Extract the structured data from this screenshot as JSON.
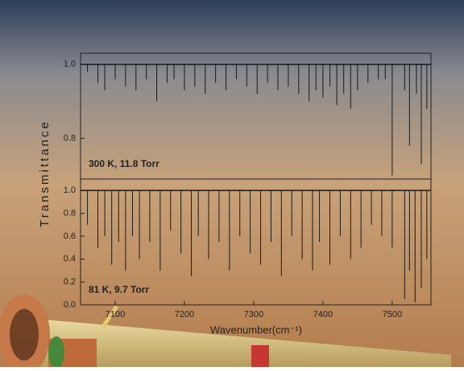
{
  "chart_data": [
    {
      "type": "stick",
      "annotation": "300 K, 11.8 Torr",
      "y_label": "Transmittance",
      "x": [
        7060,
        7075,
        7085,
        7100,
        7115,
        7130,
        7145,
        7160,
        7175,
        7185,
        7200,
        7215,
        7230,
        7245,
        7260,
        7275,
        7290,
        7305,
        7320,
        7335,
        7350,
        7365,
        7380,
        7390,
        7400,
        7410,
        7420,
        7430,
        7440,
        7450,
        7465,
        7480,
        7490,
        7500,
        7518,
        7525,
        7535,
        7542,
        7550
      ],
      "values": [
        0.98,
        0.95,
        0.93,
        0.96,
        0.94,
        0.93,
        0.96,
        0.9,
        0.95,
        0.96,
        0.93,
        0.94,
        0.92,
        0.95,
        0.93,
        0.96,
        0.94,
        0.92,
        0.95,
        0.93,
        0.94,
        0.92,
        0.9,
        0.93,
        0.91,
        0.94,
        0.89,
        0.92,
        0.88,
        0.93,
        0.95,
        0.96,
        0.96,
        0.7,
        0.93,
        0.78,
        0.92,
        0.73,
        0.88
      ],
      "color": "#1a1a1a",
      "xlim": [
        7050,
        7556
      ],
      "ylim": [
        0.69,
        1.03
      ],
      "yticks": [
        {
          "value": 1,
          "label": "1.0"
        },
        {
          "value": 0.8,
          "label": "0.8"
        }
      ]
    },
    {
      "type": "stick",
      "annotation": "81 K, 9.7 Torr",
      "x_label": "Wavenumber(cm⁻¹)",
      "x": [
        7060,
        7075,
        7085,
        7095,
        7105,
        7115,
        7125,
        7135,
        7150,
        7165,
        7180,
        7195,
        7210,
        7220,
        7235,
        7250,
        7265,
        7280,
        7295,
        7310,
        7325,
        7340,
        7355,
        7370,
        7385,
        7395,
        7410,
        7425,
        7440,
        7455,
        7470,
        7485,
        7500,
        7518,
        7525,
        7533,
        7542,
        7550
      ],
      "values": [
        0.7,
        0.5,
        0.6,
        0.35,
        0.55,
        0.3,
        0.6,
        0.4,
        0.55,
        0.3,
        0.65,
        0.45,
        0.25,
        0.6,
        0.4,
        0.55,
        0.3,
        0.6,
        0.45,
        0.35,
        0.55,
        0.25,
        0.6,
        0.4,
        0.3,
        0.55,
        0.35,
        0.6,
        0.4,
        0.5,
        0.7,
        0.6,
        0.5,
        0.05,
        0.3,
        0.02,
        0.15,
        0.4
      ],
      "color": "#1a1a1a",
      "xlim": [
        7050,
        7556
      ],
      "ylim": [
        0,
        1.1
      ],
      "xticks": [
        7100,
        7200,
        7300,
        7400,
        7500
      ],
      "yticks": [
        {
          "value": 1,
          "label": "1.0"
        },
        {
          "value": 0.8,
          "label": "0.8"
        },
        {
          "value": 0.6,
          "label": "0.6"
        },
        {
          "value": 0.4,
          "label": "0.4"
        },
        {
          "value": 0.2,
          "label": "0.2"
        },
        {
          "value": 0,
          "label": "0.0"
        }
      ]
    }
  ]
}
